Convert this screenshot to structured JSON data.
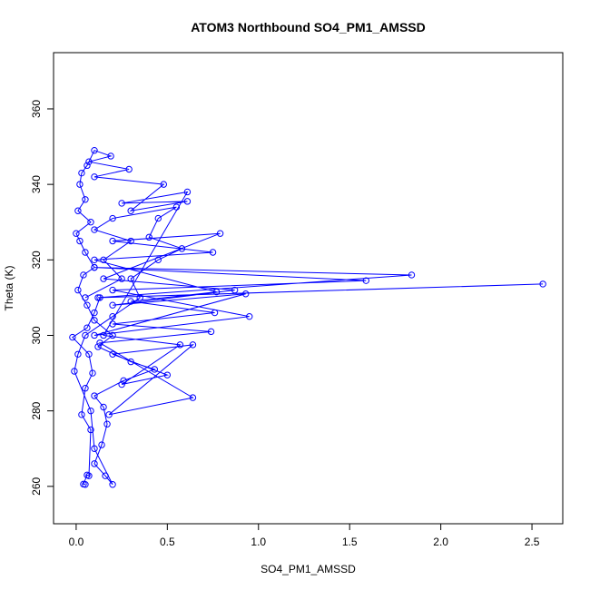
{
  "chart_data": {
    "type": "line",
    "title": "ATOM3 Northbound SO4_PM1_AMSSD",
    "x_label": "SO4_PM1_AMSSD",
    "y_label": "Theta (K)",
    "series": [
      {
        "color": "#0000ff",
        "x": [
          0.05,
          0.04,
          0.06,
          0.07,
          0.08,
          0.03,
          0.05,
          0.09,
          0.07,
          -0.02,
          0.06,
          0.1,
          0.13,
          2.56,
          0.12,
          1.84,
          0.1,
          1.59,
          0.2,
          0.95,
          0.1,
          0.93,
          0.2,
          0.87,
          0.15,
          0.79,
          0.2,
          0.75,
          0.1,
          0.77,
          0.3,
          0.76,
          0.2,
          0.74,
          0.13,
          0.64,
          0.18,
          0.64,
          0.2,
          0.5,
          0.25,
          0.57,
          0.15,
          0.61,
          0.25,
          0.61,
          0.3,
          0.48,
          0.1,
          0.29,
          0.07,
          0.19,
          0.1,
          0.06,
          0.03,
          0.02,
          0.05,
          0.01,
          0.08,
          0.0,
          0.02,
          0.05,
          0.1,
          0.04,
          0.01,
          0.06,
          0.1,
          0.2,
          0.12,
          0.3,
          0.43,
          0.26,
          0.1,
          0.15,
          0.17,
          0.14,
          0.1,
          0.16,
          0.2,
          0.1,
          0.08,
          -0.01,
          0.01,
          0.05,
          0.2,
          0.35,
          0.3,
          0.45,
          0.58,
          0.4,
          0.45,
          0.55,
          0.2,
          0.1,
          0.3,
          0.15,
          0.25,
          0.05
        ],
        "values": [
          260.5,
          260.6,
          263,
          262.8,
          275,
          279,
          286,
          290,
          295,
          299.5,
          302,
          306,
          310,
          313.6,
          310,
          316,
          318,
          314.5,
          312,
          305,
          300,
          311,
          308,
          312,
          315,
          327,
          325,
          322,
          320,
          311.5,
          309,
          306,
          303,
          301,
          298,
          283.5,
          279,
          297.5,
          295,
          289.5,
          287,
          297.5,
          300,
          338,
          335,
          335.5,
          333,
          340,
          342,
          344,
          346,
          347.5,
          349,
          345,
          343,
          340,
          336,
          333,
          330,
          327,
          325,
          322,
          318,
          316,
          312,
          308,
          304,
          300,
          297,
          293,
          291,
          288,
          284,
          281,
          276.5,
          271,
          266,
          262.8,
          260.5,
          270,
          280,
          290.5,
          295,
          300,
          305,
          310,
          315,
          320,
          323,
          326,
          331,
          334,
          331,
          328,
          325,
          320,
          315,
          310
        ]
      }
    ],
    "xlim": [
      -0.124,
      2.669
    ],
    "ylim": [
      250.1,
      374.9
    ],
    "xticks": [
      {
        "value": 0,
        "label": "0.0"
      },
      {
        "value": 0.5,
        "label": "0.5"
      },
      {
        "value": 1,
        "label": "1.0"
      },
      {
        "value": 1.5,
        "label": "1.5"
      },
      {
        "value": 2,
        "label": "2.0"
      },
      {
        "value": 2.5,
        "label": "2.5"
      }
    ],
    "yticks": [
      260,
      280,
      300,
      320,
      340,
      360
    ]
  }
}
